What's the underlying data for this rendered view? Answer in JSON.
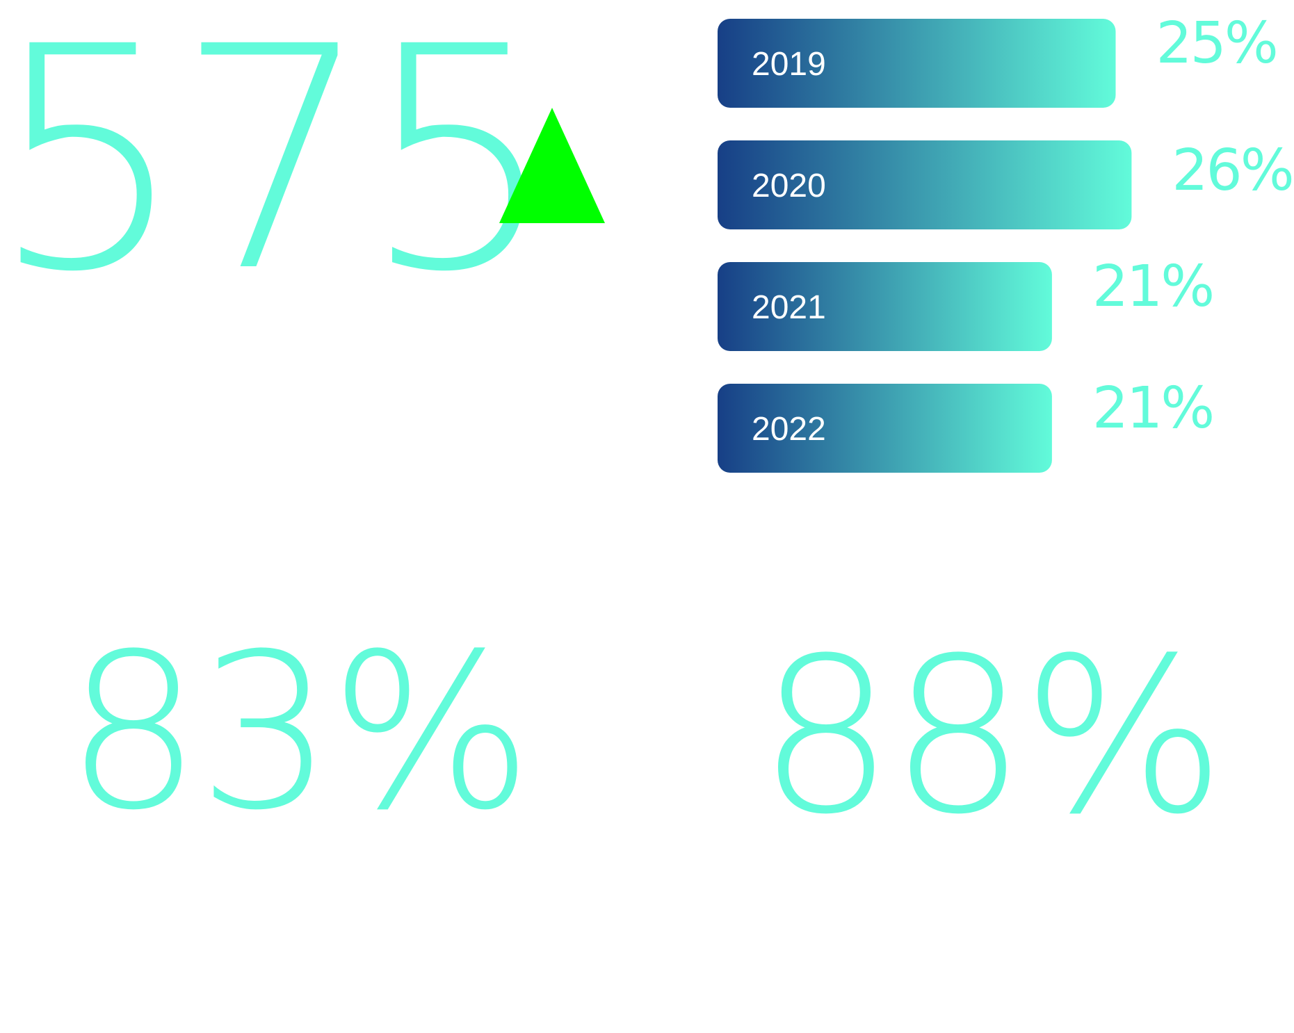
{
  "colors": {
    "accent": "#62FBDA",
    "bar_start": "#173F86",
    "bar_end": "#62FBDA",
    "trend_up": "#00FF00"
  },
  "kpis": {
    "main": "575",
    "trend_icon": "triangle-up-icon",
    "left": "83%",
    "right": "88%"
  },
  "chart_data": {
    "type": "bar",
    "orientation": "horizontal",
    "categories": [
      "2019",
      "2020",
      "2021",
      "2022"
    ],
    "values": [
      25,
      26,
      21,
      21
    ],
    "value_labels": [
      "25%",
      "26%",
      "21%",
      "21%"
    ],
    "unit": "%",
    "title": "",
    "xlabel": "",
    "ylabel": "",
    "grid": false
  }
}
